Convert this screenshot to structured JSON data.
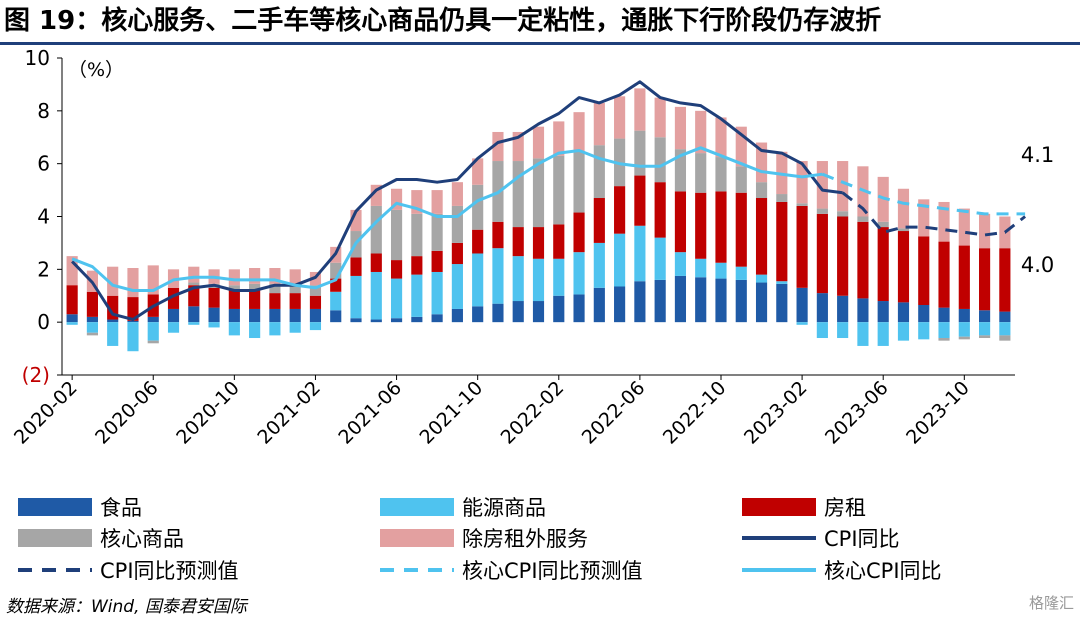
{
  "title": "图 19：核心服务、二手车等核心商品仍具一定粘性，通胀下行阶段仍存波折",
  "source": "数据来源：Wind, 国泰君安国际",
  "watermark": "格隆汇",
  "chart_data": {
    "type": "bar",
    "unit_label": "（%）",
    "ylim": [
      -2,
      10
    ],
    "yticks": [
      -2,
      0,
      2,
      4,
      6,
      8,
      10
    ],
    "ytick_labels": [
      "(2)",
      "0",
      "2",
      "4",
      "6",
      "8",
      "10"
    ],
    "xtick_labels": [
      "2020-02",
      "2020-06",
      "2020-10",
      "2021-02",
      "2021-06",
      "2021-10",
      "2022-02",
      "2022-06",
      "2022-10",
      "2023-02",
      "2023-06",
      "2023-10"
    ],
    "categories": [
      "2020-02",
      "2020-03",
      "2020-04",
      "2020-05",
      "2020-06",
      "2020-07",
      "2020-08",
      "2020-09",
      "2020-10",
      "2020-11",
      "2020-12",
      "2021-01",
      "2021-02",
      "2021-03",
      "2021-04",
      "2021-05",
      "2021-06",
      "2021-07",
      "2021-08",
      "2021-09",
      "2021-10",
      "2021-11",
      "2021-12",
      "2022-01",
      "2022-02",
      "2022-03",
      "2022-04",
      "2022-05",
      "2022-06",
      "2022-07",
      "2022-08",
      "2022-09",
      "2022-10",
      "2022-11",
      "2022-12",
      "2023-01",
      "2023-02",
      "2023-03",
      "2023-04",
      "2023-05",
      "2023-06",
      "2023-07",
      "2023-08",
      "2023-09",
      "2023-10",
      "2023-11",
      "2023-12"
    ],
    "stack_series": [
      {
        "name": "食品",
        "color": "#1f5aa6",
        "values": [
          0.3,
          0.2,
          0.1,
          0.05,
          0.2,
          0.5,
          0.6,
          0.55,
          0.5,
          0.5,
          0.5,
          0.5,
          0.5,
          0.45,
          0.15,
          0.1,
          0.15,
          0.2,
          0.3,
          0.5,
          0.6,
          0.7,
          0.8,
          0.8,
          1.0,
          1.05,
          1.3,
          1.35,
          1.55,
          1.6,
          1.75,
          1.7,
          1.65,
          1.6,
          1.5,
          1.45,
          1.3,
          1.1,
          1.0,
          0.9,
          0.8,
          0.75,
          0.65,
          0.55,
          0.5,
          0.45,
          0.4
        ]
      },
      {
        "name": "能源商品",
        "color": "#4fc3ef",
        "values": [
          -0.1,
          -0.4,
          -0.9,
          -1.1,
          -0.7,
          -0.4,
          -0.1,
          -0.2,
          -0.5,
          -0.6,
          -0.5,
          -0.4,
          -0.3,
          0.7,
          1.6,
          1.8,
          1.5,
          1.6,
          1.6,
          1.7,
          2.0,
          2.1,
          1.7,
          1.6,
          1.4,
          1.6,
          1.7,
          2.0,
          2.1,
          1.6,
          0.9,
          0.7,
          0.6,
          0.5,
          0.3,
          0.1,
          -0.1,
          -0.6,
          -0.6,
          -0.9,
          -0.9,
          -0.7,
          -0.65,
          -0.6,
          -0.55,
          -0.5,
          -0.5
        ]
      },
      {
        "name": "房租",
        "color": "#c00000",
        "values": [
          1.1,
          0.95,
          0.9,
          0.9,
          0.85,
          0.8,
          0.8,
          0.75,
          0.7,
          0.7,
          0.6,
          0.6,
          0.5,
          0.5,
          0.7,
          0.7,
          0.7,
          0.7,
          0.8,
          0.8,
          0.9,
          1.0,
          1.1,
          1.2,
          1.3,
          1.5,
          1.7,
          1.8,
          1.9,
          2.1,
          2.3,
          2.5,
          2.7,
          2.8,
          2.9,
          3.0,
          3.1,
          3.0,
          3.0,
          2.9,
          2.8,
          2.7,
          2.6,
          2.5,
          2.4,
          2.35,
          2.4
        ]
      },
      {
        "name": "核心商品",
        "color": "#a6a6a6",
        "values": [
          0.0,
          -0.1,
          0.0,
          0.0,
          -0.1,
          0.0,
          0.1,
          0.15,
          0.2,
          0.25,
          0.35,
          0.3,
          0.4,
          0.6,
          1.0,
          1.8,
          1.9,
          1.6,
          1.4,
          1.4,
          1.7,
          2.3,
          2.5,
          2.6,
          2.6,
          2.3,
          2.0,
          1.8,
          1.7,
          1.7,
          1.6,
          1.5,
          1.3,
          1.0,
          0.6,
          0.3,
          0.1,
          0.2,
          0.2,
          0.2,
          0.2,
          0.1,
          0.0,
          -0.1,
          -0.1,
          -0.1,
          -0.2
        ]
      },
      {
        "name": "除房租外服务",
        "color": "#e3a0a0",
        "values": [
          1.1,
          0.8,
          1.1,
          1.1,
          1.1,
          0.7,
          0.6,
          0.55,
          0.6,
          0.6,
          0.6,
          0.6,
          0.5,
          0.6,
          0.8,
          0.8,
          0.8,
          0.9,
          0.9,
          0.9,
          1.0,
          1.1,
          1.1,
          1.2,
          1.3,
          1.5,
          1.6,
          1.6,
          1.6,
          1.5,
          1.6,
          1.6,
          1.5,
          1.5,
          1.5,
          1.6,
          1.6,
          1.8,
          1.9,
          1.9,
          1.7,
          1.5,
          1.4,
          1.5,
          1.4,
          1.3,
          1.2
        ]
      }
    ],
    "line_series": [
      {
        "name": "CPI同比",
        "color": "#1f3f7a",
        "dash": false,
        "start": 0,
        "values": [
          2.3,
          1.5,
          0.3,
          0.1,
          0.6,
          1.0,
          1.3,
          1.4,
          1.2,
          1.2,
          1.4,
          1.4,
          1.7,
          2.6,
          4.2,
          5.0,
          5.4,
          5.4,
          5.3,
          5.4,
          6.2,
          6.8,
          7.0,
          7.5,
          7.9,
          8.5,
          8.3,
          8.6,
          9.1,
          8.5,
          8.3,
          8.2,
          7.7,
          7.1,
          6.5,
          6.4,
          6.0,
          5.0,
          4.9
        ]
      },
      {
        "name": "核心CPI同比",
        "color": "#4fc3ef",
        "dash": false,
        "start": 0,
        "values": [
          2.4,
          2.1,
          1.4,
          1.2,
          1.2,
          1.6,
          1.7,
          1.7,
          1.6,
          1.6,
          1.6,
          1.4,
          1.3,
          1.6,
          3.0,
          3.8,
          4.5,
          4.3,
          4.0,
          4.0,
          4.6,
          4.9,
          5.5,
          6.0,
          6.4,
          6.5,
          6.2,
          6.0,
          5.9,
          5.9,
          6.3,
          6.6,
          6.3,
          6.0,
          5.7,
          5.6,
          5.5,
          5.6
        ]
      },
      {
        "name": "CPI同比预测值",
        "color": "#1f3f7a",
        "dash": true,
        "start": 38,
        "values": [
          4.9,
          4.3,
          3.4,
          3.6,
          3.6,
          3.5,
          3.4,
          3.3,
          3.4,
          4.0
        ]
      },
      {
        "name": "核心CPI同比预测值",
        "color": "#4fc3ef",
        "dash": true,
        "start": 37,
        "values": [
          5.6,
          5.3,
          5.0,
          4.7,
          4.5,
          4.4,
          4.3,
          4.2,
          4.1,
          4.1,
          4.1
        ]
      }
    ],
    "annotations": [
      {
        "text": "4.1",
        "value": 4.1
      },
      {
        "text": "4.0",
        "value": 4.0
      }
    ],
    "grid": false,
    "legend_position": "bottom"
  },
  "legend": {
    "items": [
      {
        "label": "食品",
        "kind": "box",
        "color": "#1f5aa6"
      },
      {
        "label": "能源商品",
        "kind": "box",
        "color": "#4fc3ef"
      },
      {
        "label": "房租",
        "kind": "box",
        "color": "#c00000"
      },
      {
        "label": "核心商品",
        "kind": "box",
        "color": "#a6a6a6"
      },
      {
        "label": "除房租外服务",
        "kind": "box",
        "color": "#e3a0a0"
      },
      {
        "label": "CPI同比",
        "kind": "line",
        "color": "#1f3f7a"
      },
      {
        "label": "CPI同比预测值",
        "kind": "dash",
        "color": "#1f3f7a"
      },
      {
        "label": "核心CPI同比预测值",
        "kind": "dash",
        "color": "#4fc3ef"
      },
      {
        "label": "核心CPI同比",
        "kind": "line",
        "color": "#4fc3ef"
      }
    ]
  }
}
